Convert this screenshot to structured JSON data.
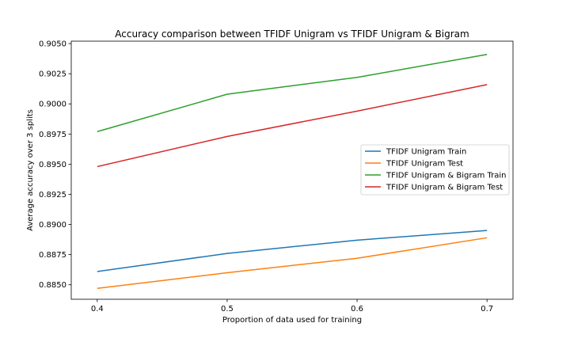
{
  "chart_data": {
    "type": "line",
    "title": "Accuracy comparison between TFIDF Unigram vs TFIDF Unigram & Bigram",
    "xlabel": "Proportion of data used for training",
    "ylabel": "Average accuracy over 3 splits",
    "x": [
      0.4,
      0.5,
      0.6,
      0.7
    ],
    "x_ticks": [
      "0.4",
      "0.5",
      "0.6",
      "0.7"
    ],
    "y_ticks": [
      "0.8850",
      "0.8875",
      "0.8900",
      "0.8925",
      "0.8950",
      "0.8975",
      "0.9000",
      "0.9025",
      "0.9050"
    ],
    "xlim": [
      0.38,
      0.72
    ],
    "ylim": [
      0.8838,
      0.9052
    ],
    "grid": false,
    "legend_position": "center-right",
    "series": [
      {
        "name": "TFIDF Unigram Train",
        "color": "#1f77b4",
        "values": [
          0.8861,
          0.8876,
          0.8887,
          0.8895
        ]
      },
      {
        "name": "TFIDF Unigram Test",
        "color": "#ff7f0e",
        "values": [
          0.8847,
          0.886,
          0.8872,
          0.8889
        ]
      },
      {
        "name": "TFIDF Unigram & Bigram Train",
        "color": "#2ca02c",
        "values": [
          0.8977,
          0.9008,
          0.9022,
          0.9041
        ]
      },
      {
        "name": "TFIDF Unigram & Bigram Test",
        "color": "#d62728",
        "values": [
          0.8948,
          0.8973,
          0.8994,
          0.9016
        ]
      }
    ]
  }
}
